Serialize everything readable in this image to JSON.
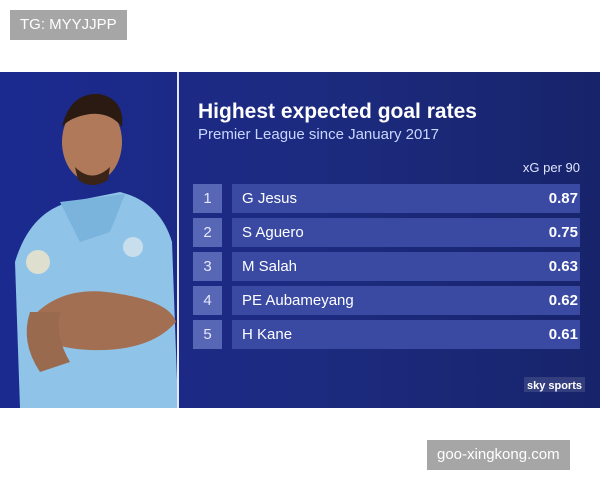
{
  "watermark_top": "TG: MYYJJPP",
  "graphic": {
    "title": "Highest expected goal rates",
    "subtitle": "Premier League since January 2017",
    "column_header": "xG per 90",
    "rows": [
      [
        1,
        "G Jesus",
        0.87
      ],
      [
        2,
        "S Aguero",
        0.75
      ],
      [
        3,
        "M Salah",
        0.63
      ],
      [
        4,
        "PE Aubameyang",
        0.62
      ],
      [
        5,
        "H Kane",
        0.61
      ]
    ],
    "logo": "sky sports"
  },
  "watermark_bottom": "goo-xingkong.com"
}
